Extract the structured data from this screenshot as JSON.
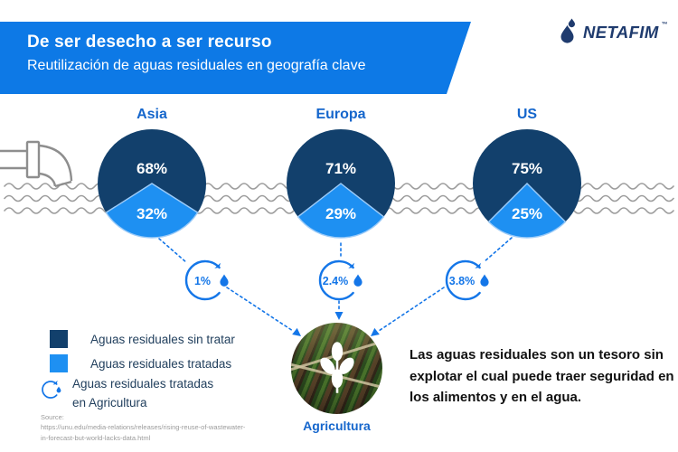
{
  "header": {
    "title": "De ser desecho a ser recurso",
    "subtitle": "Reutilización de aguas residuales en geografía clave"
  },
  "brand": {
    "name": "NETAFIM",
    "trademark": "™"
  },
  "chart_data": {
    "type": "pie",
    "title": "De ser desecho a ser recurso — Reutilización de aguas residuales en geografía clave",
    "unit": "%",
    "categories": [
      "Aguas residuales sin tratar",
      "Aguas residuales tratadas"
    ],
    "regions": [
      {
        "label": "Asia",
        "untreated": 68,
        "treated": 32,
        "untreated_label": "68%",
        "treated_label": "32%",
        "agriculture_reuse": 1.0,
        "agriculture_reuse_label": "1%"
      },
      {
        "label": "Europa",
        "untreated": 71,
        "treated": 29,
        "untreated_label": "71%",
        "treated_label": "29%",
        "agriculture_reuse": 2.4,
        "agriculture_reuse_label": "2.4%"
      },
      {
        "label": "US",
        "untreated": 75,
        "treated": 25,
        "untreated_label": "75%",
        "treated_label": "25%",
        "agriculture_reuse": 3.8,
        "agriculture_reuse_label": "3.8%"
      }
    ],
    "colors": {
      "untreated": "#12406C",
      "treated": "#1E90F2",
      "accent": "#1476E8",
      "banner": "#0D79E6"
    },
    "legend_position": "bottom-left",
    "grid": false
  },
  "legend": {
    "items": [
      {
        "label": "Aguas residuales sin tratar"
      },
      {
        "label": "Aguas residuales tratadas"
      },
      {
        "label": "Aguas residuales tratadas en Agricultura"
      }
    ]
  },
  "destination": {
    "label": "Agricultura"
  },
  "callout": {
    "text": "Las aguas residuales son un tesoro sin explotar el cual puede traer seguridad en los alimentos y en el agua."
  },
  "source": {
    "label": "Source:",
    "lines": [
      "https://unu.edu/media-relations/releases/rising-reuse-of-wastewater-",
      "in-forecast-but-world-lacks-data.html"
    ]
  }
}
